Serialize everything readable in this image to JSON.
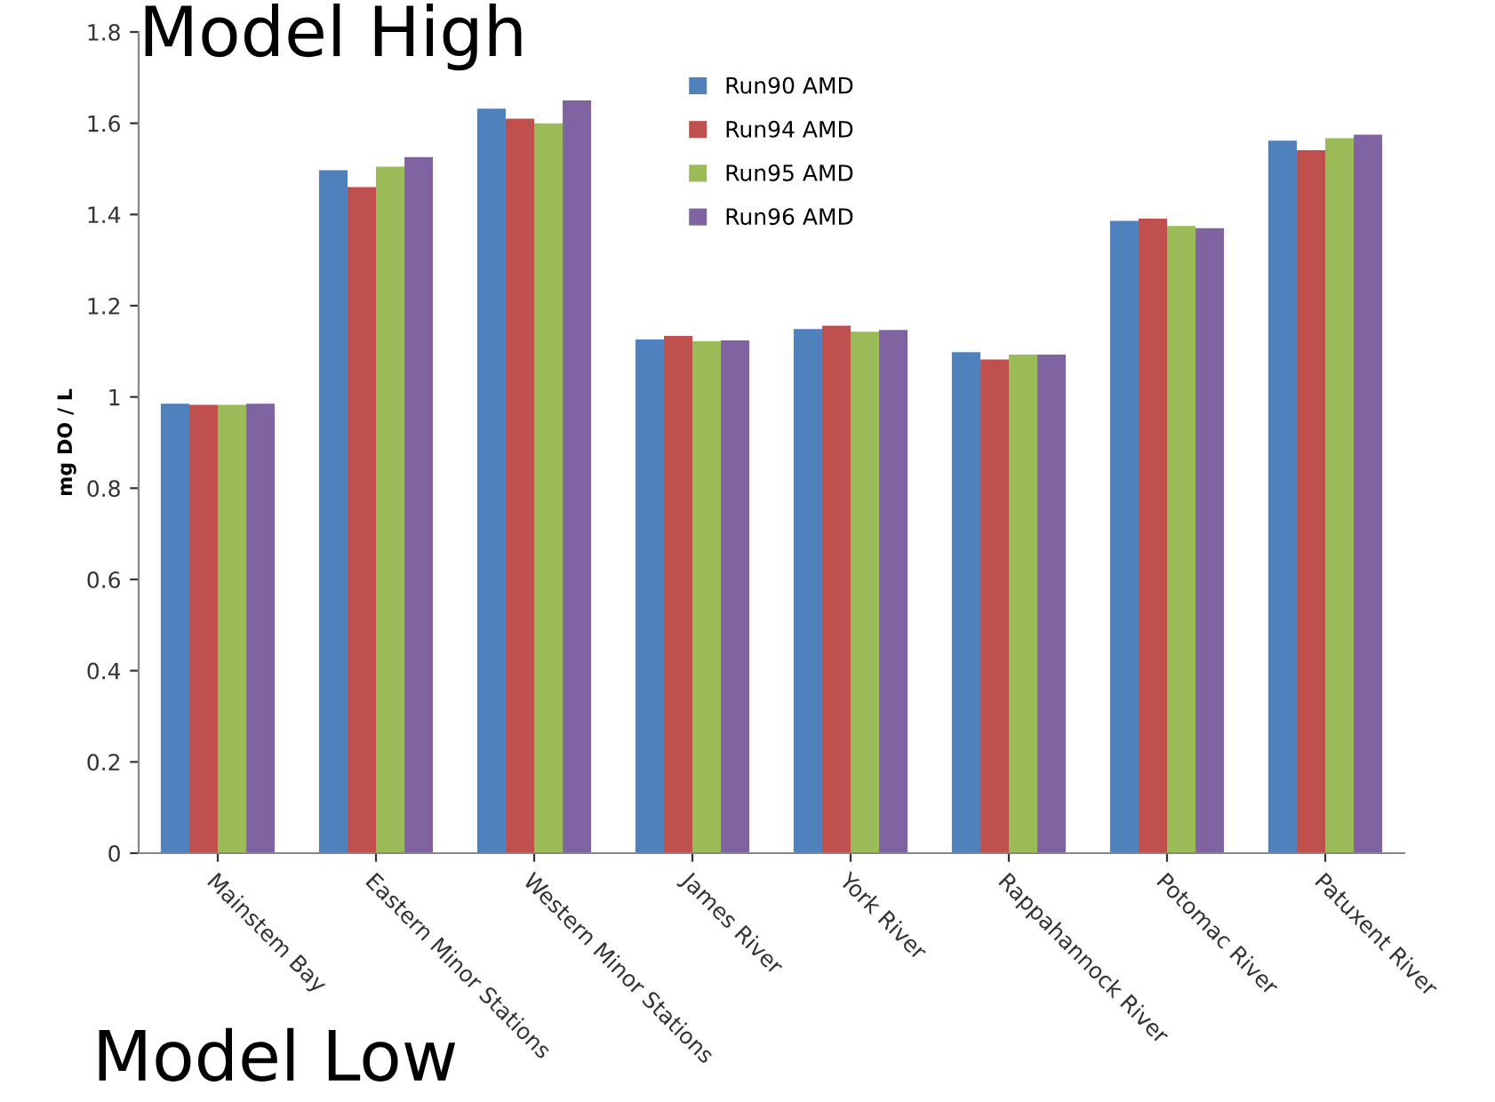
{
  "chart_data": {
    "type": "bar",
    "ylabel": "mg DO / L",
    "categories": [
      "Mainstem Bay",
      "Eastern Minor Stations",
      "Western Minor Stations",
      "James River",
      "York River",
      "Rappahannock River",
      "Potomac River",
      "Patuxent River"
    ],
    "series": [
      {
        "name": "Run90 AMD",
        "color": "#4f81bd",
        "values": [
          0.985,
          1.497,
          1.632,
          1.126,
          1.149,
          1.098,
          1.386,
          1.562
        ]
      },
      {
        "name": "Run94 AMD",
        "color": "#c0504d",
        "values": [
          0.983,
          1.46,
          1.61,
          1.134,
          1.156,
          1.082,
          1.391,
          1.541
        ]
      },
      {
        "name": "Run95 AMD",
        "color": "#9bbb59",
        "values": [
          0.983,
          1.505,
          1.6,
          1.122,
          1.143,
          1.093,
          1.375,
          1.567
        ]
      },
      {
        "name": "Run96 AMD",
        "color": "#8064a2",
        "values": [
          0.985,
          1.526,
          1.65,
          1.124,
          1.147,
          1.093,
          1.37,
          1.575
        ]
      }
    ],
    "ylim": [
      0,
      1.8
    ],
    "yticks": [
      0,
      0.2,
      0.4,
      0.6,
      0.8,
      1,
      1.2,
      1.4,
      1.6,
      1.8
    ],
    "annotations": [
      "Model High",
      "Model Low"
    ],
    "legend": "top",
    "grid": false
  }
}
